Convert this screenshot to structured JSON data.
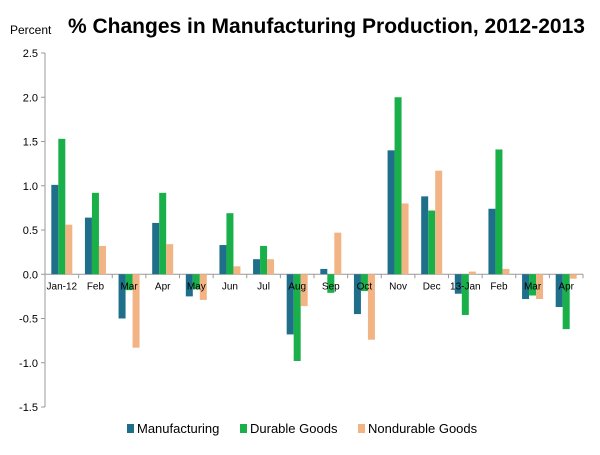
{
  "chart_data": {
    "type": "bar",
    "title": "% Changes in Manufacturing Production, 2012-2013",
    "ylabel": "Percent",
    "xlabel": "",
    "categories": [
      "Jan-12",
      "Feb",
      "Mar",
      "Apr",
      "May",
      "Jun",
      "Jul",
      "Aug",
      "Sep",
      "Oct",
      "Nov",
      "Dec",
      "13-Jan",
      "Feb",
      "Mar",
      "Apr"
    ],
    "ylim": [
      -1.5,
      2.5
    ],
    "yticks": [
      "2.5",
      "2.0",
      "1.5",
      "1.0",
      "0.5",
      "0.0",
      "-0.5",
      "-1.0",
      "-1.5"
    ],
    "grid": false,
    "legend_position": "bottom",
    "series": [
      {
        "name": "Manufacturing",
        "color": "#1f6f8b",
        "values": [
          1.01,
          0.64,
          -0.5,
          0.58,
          -0.25,
          0.33,
          0.17,
          -0.68,
          0.06,
          -0.45,
          1.4,
          0.88,
          -0.22,
          0.74,
          -0.28,
          -0.37
        ]
      },
      {
        "name": "Durable Goods",
        "color": "#19b04a",
        "values": [
          1.53,
          0.92,
          -0.18,
          0.92,
          -0.17,
          0.69,
          0.32,
          -0.98,
          -0.21,
          -0.19,
          2.0,
          0.72,
          -0.46,
          1.41,
          -0.24,
          -0.62
        ]
      },
      {
        "name": "Nondurable Goods",
        "color": "#f2b484",
        "values": [
          0.56,
          0.32,
          -0.83,
          0.34,
          -0.29,
          0.09,
          0.17,
          -0.36,
          0.47,
          -0.74,
          0.8,
          1.17,
          0.03,
          0.06,
          -0.28,
          -0.05
        ]
      }
    ]
  }
}
